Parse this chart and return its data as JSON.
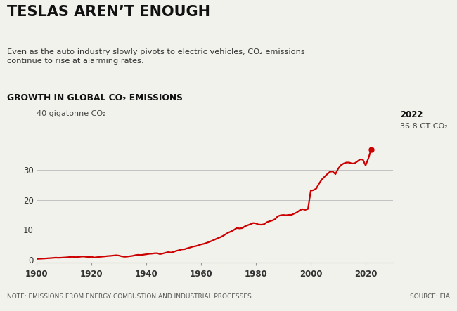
{
  "title_main": "TESLAS AREN’T ENOUGH",
  "subtitle": "Even as the auto industry slowly pivots to electric vehicles, CO₂ emissions\ncontinue to rise at alarming rates.",
  "chart_title": "GROWTH IN GLOBAL CO₂ EMISSIONS",
  "ylabel": "40 gigatonne CO₂",
  "note": "NOTE: EMISSIONS FROM ENERGY COMBUSTION AND INDUSTRIAL PROCESSES",
  "source": "SOURCE: EIA",
  "annotation_year": "2022",
  "annotation_value": "36.8 GT CO₂",
  "line_color": "#cc0000",
  "bg_color": "#f2f2ed",
  "yticks": [
    0,
    10,
    20,
    30
  ],
  "xticks": [
    1900,
    1920,
    1940,
    1960,
    1980,
    2000,
    2020
  ],
  "ylim": [
    -1,
    40
  ],
  "xlim": [
    1900,
    2030
  ],
  "years": [
    1900,
    1901,
    1902,
    1903,
    1904,
    1905,
    1906,
    1907,
    1908,
    1909,
    1910,
    1911,
    1912,
    1913,
    1914,
    1915,
    1916,
    1917,
    1918,
    1919,
    1920,
    1921,
    1922,
    1923,
    1924,
    1925,
    1926,
    1927,
    1928,
    1929,
    1930,
    1931,
    1932,
    1933,
    1934,
    1935,
    1936,
    1937,
    1938,
    1939,
    1940,
    1941,
    1942,
    1943,
    1944,
    1945,
    1946,
    1947,
    1948,
    1949,
    1950,
    1951,
    1952,
    1953,
    1954,
    1955,
    1956,
    1957,
    1958,
    1959,
    1960,
    1961,
    1962,
    1963,
    1964,
    1965,
    1966,
    1967,
    1968,
    1969,
    1970,
    1971,
    1972,
    1973,
    1974,
    1975,
    1976,
    1977,
    1978,
    1979,
    1980,
    1981,
    1982,
    1983,
    1984,
    1985,
    1986,
    1987,
    1988,
    1989,
    1990,
    1991,
    1992,
    1993,
    1994,
    1995,
    1996,
    1997,
    1998,
    1999,
    2000,
    2001,
    2002,
    2003,
    2004,
    2005,
    2006,
    2007,
    2008,
    2009,
    2010,
    2011,
    2012,
    2013,
    2014,
    2015,
    2016,
    2017,
    2018,
    2019,
    2020,
    2021,
    2022
  ],
  "values": [
    0.3,
    0.35,
    0.4,
    0.45,
    0.52,
    0.58,
    0.65,
    0.73,
    0.68,
    0.72,
    0.78,
    0.84,
    0.93,
    1.03,
    0.9,
    0.92,
    1.05,
    1.12,
    1.03,
    0.93,
    1.03,
    0.78,
    0.88,
    1.0,
    1.08,
    1.16,
    1.27,
    1.33,
    1.42,
    1.52,
    1.42,
    1.18,
    1.03,
    1.08,
    1.2,
    1.32,
    1.54,
    1.67,
    1.6,
    1.72,
    1.85,
    2.0,
    2.05,
    2.18,
    2.22,
    1.9,
    2.1,
    2.35,
    2.58,
    2.44,
    2.66,
    2.99,
    3.2,
    3.47,
    3.54,
    3.85,
    4.1,
    4.4,
    4.55,
    4.82,
    5.14,
    5.34,
    5.65,
    5.99,
    6.35,
    6.76,
    7.18,
    7.53,
    8.0,
    8.57,
    9.1,
    9.48,
    10.0,
    10.6,
    10.47,
    10.57,
    11.18,
    11.54,
    11.88,
    12.28,
    12.15,
    11.76,
    11.72,
    11.89,
    12.55,
    12.87,
    13.13,
    13.58,
    14.55,
    14.86,
    14.97,
    14.87,
    14.99,
    15.01,
    15.44,
    15.87,
    16.55,
    16.9,
    16.68,
    17.0,
    23.06,
    23.27,
    23.77,
    25.38,
    26.78,
    27.71,
    28.59,
    29.38,
    29.48,
    28.59,
    30.4,
    31.57,
    32.14,
    32.46,
    32.46,
    32.13,
    32.19,
    32.84,
    33.51,
    33.44,
    31.5,
    33.8,
    36.8
  ]
}
